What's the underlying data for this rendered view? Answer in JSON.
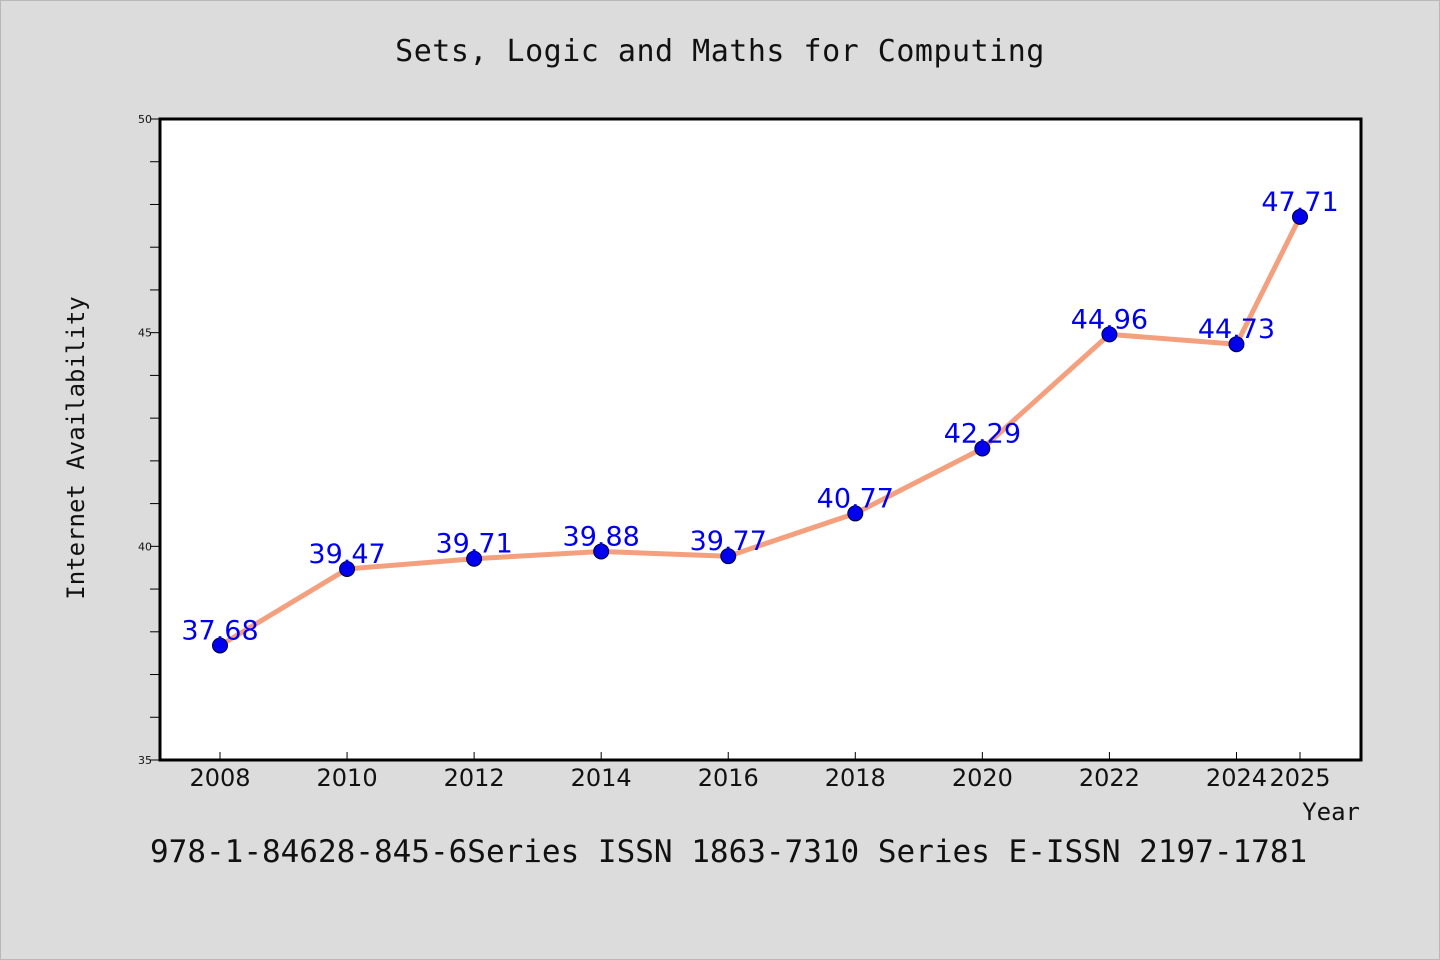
{
  "chart_data": {
    "type": "line",
    "title": "Sets, Logic and Maths for Computing",
    "xlabel": "Year",
    "ylabel": "Internet Availability",
    "categories": [
      "2008",
      "2010",
      "2012",
      "2014",
      "2016",
      "2018",
      "2020",
      "2022",
      "2024",
      "2025"
    ],
    "series": [
      {
        "values": [
          37.68,
          39.47,
          39.71,
          39.88,
          39.77,
          40.77,
          42.29,
          44.96,
          44.73,
          47.71
        ],
        "labels": [
          "37.68",
          "39.47",
          "39.71",
          "39.88",
          "39.77",
          "40.77",
          "42.29",
          "44.96",
          "44.73",
          "47.71"
        ],
        "line_color": "#f4a07e",
        "marker_color": "#0000ee",
        "label_color": "#0000ee"
      }
    ],
    "ylim": [
      35,
      50
    ],
    "y_major_ticks": [
      35,
      40,
      45,
      50
    ],
    "y_minor_step": 1,
    "grid": false,
    "legend": "none"
  },
  "footer": "978-1-84628-845-6Series ISSN 1863-7310 Series E-ISSN 2197-1781"
}
